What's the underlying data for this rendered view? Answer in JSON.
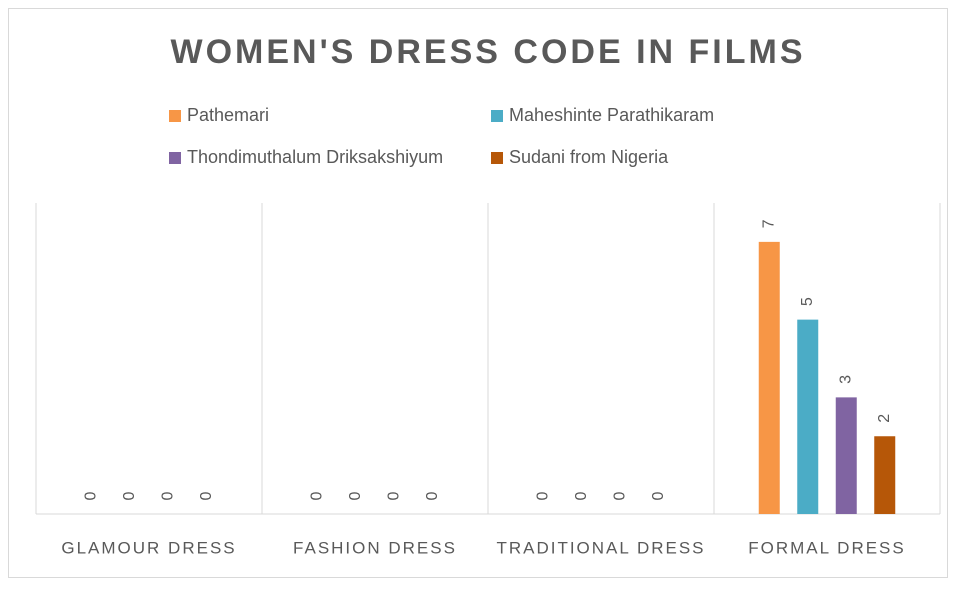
{
  "chart_data": {
    "type": "bar",
    "title": "WOMEN'S DRESS CODE IN FILMS",
    "categories": [
      "GLAMOUR DRESS",
      "FASHION DRESS",
      "TRADITIONAL DRESS",
      "FORMAL DRESS"
    ],
    "series": [
      {
        "name": "Pathemari",
        "color": "#f79646",
        "values": [
          0,
          0,
          0,
          7
        ]
      },
      {
        "name": "Maheshinte Parathikaram",
        "color": "#4bacc6",
        "values": [
          0,
          0,
          0,
          5
        ]
      },
      {
        "name": "Thondimuthalum Driksakshiyum",
        "color": "#8064a2",
        "values": [
          0,
          0,
          0,
          3
        ]
      },
      {
        "name": "Sudani from Nigeria",
        "color": "#b65708",
        "values": [
          0,
          0,
          0,
          2
        ]
      }
    ],
    "ylim": [
      0,
      8
    ],
    "legend": "top"
  }
}
